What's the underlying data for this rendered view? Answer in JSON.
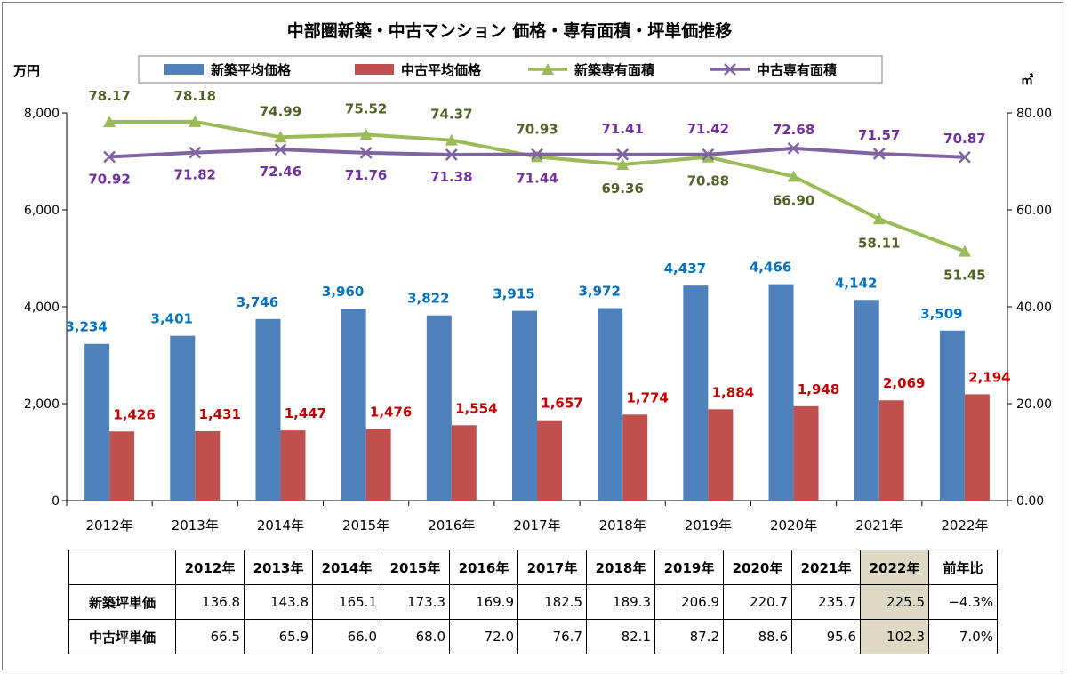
{
  "chart_data": {
    "type": "bar",
    "title": "中部圏新築・中古マンション 価格・専有面積・坪単価推移",
    "y_left_label": "万円",
    "y_right_label": "㎡",
    "y_left_range": [
      0,
      8000
    ],
    "y_left_ticks": [
      "0",
      "2,000",
      "4,000",
      "6,000",
      "8,000"
    ],
    "y_right_range": [
      0,
      80
    ],
    "y_right_ticks": [
      "0.00",
      "20.00",
      "40.00",
      "60.00",
      "80.00"
    ],
    "categories": [
      "2012年",
      "2013年",
      "2014年",
      "2015年",
      "2016年",
      "2017年",
      "2018年",
      "2019年",
      "2020年",
      "2021年",
      "2022年"
    ],
    "series": [
      {
        "name": "新築平均価格",
        "kind": "bar",
        "axis": "left",
        "color": "#4f81bd",
        "label_color": "#0070c0",
        "values": [
          3234,
          3401,
          3746,
          3960,
          3822,
          3915,
          3972,
          4437,
          4466,
          4142,
          3509
        ],
        "labels": [
          "3,234",
          "3,401",
          "3,746",
          "3,960",
          "3,822",
          "3,915",
          "3,972",
          "4,437",
          "4,466",
          "4,142",
          "3,509"
        ]
      },
      {
        "name": "中古平均価格",
        "kind": "bar",
        "axis": "left",
        "color": "#c0504d",
        "label_color": "#c00000",
        "values": [
          1426,
          1431,
          1447,
          1476,
          1554,
          1657,
          1774,
          1884,
          1948,
          2069,
          2194
        ],
        "labels": [
          "1,426",
          "1,431",
          "1,447",
          "1,476",
          "1,554",
          "1,657",
          "1,774",
          "1,884",
          "1,948",
          "2,069",
          "2,194"
        ]
      },
      {
        "name": "新築専有面積",
        "kind": "line",
        "marker": "triangle",
        "axis": "right",
        "color": "#9bbb59",
        "label_color": "#4f6228",
        "values": [
          78.17,
          78.18,
          74.99,
          75.52,
          74.37,
          70.93,
          69.36,
          70.88,
          66.9,
          58.11,
          51.45
        ],
        "labels": [
          "78.17",
          "78.18",
          "74.99",
          "75.52",
          "74.37",
          "70.93",
          "69.36",
          "70.88",
          "66.90",
          "58.11",
          "51.45"
        ]
      },
      {
        "name": "中古専有面積",
        "kind": "line",
        "marker": "x",
        "axis": "right",
        "color": "#8064a2",
        "label_color": "#7030a0",
        "values": [
          70.92,
          71.82,
          72.46,
          71.76,
          71.38,
          71.44,
          71.41,
          71.42,
          72.68,
          71.57,
          70.87
        ],
        "labels": [
          "70.92",
          "71.82",
          "72.46",
          "71.76",
          "71.38",
          "71.44",
          "71.41",
          "71.42",
          "72.68",
          "71.57",
          "70.87"
        ]
      }
    ],
    "legend_position": "top"
  },
  "table": {
    "headers": [
      "",
      "2012年",
      "2013年",
      "2014年",
      "2015年",
      "2016年",
      "2017年",
      "2018年",
      "2019年",
      "2020年",
      "2021年",
      "2022年",
      "前年比"
    ],
    "rows": [
      {
        "label": "新築坪単価",
        "values": [
          "136.8",
          "143.8",
          "165.1",
          "173.3",
          "169.9",
          "182.5",
          "189.3",
          "206.9",
          "220.7",
          "235.7",
          "225.5",
          "−4.3%"
        ]
      },
      {
        "label": "中古坪単価",
        "values": [
          "66.5",
          "65.9",
          "66.0",
          "68.0",
          "72.0",
          "76.7",
          "82.1",
          "87.2",
          "88.6",
          "95.6",
          "102.3",
          "7.0%"
        ]
      }
    ],
    "highlight_color": "#ddd9c4"
  }
}
